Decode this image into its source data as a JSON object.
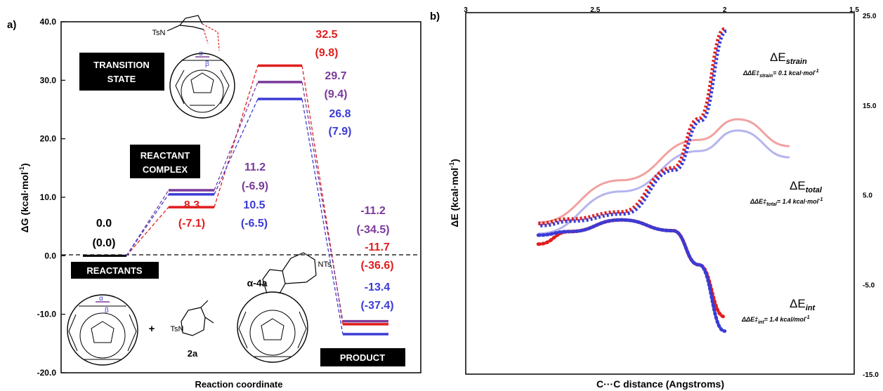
{
  "colors": {
    "red": "#e01e1e",
    "purple": "#7a3a9a",
    "blue": "#3b3bd6",
    "black": "#000000",
    "red_light": "#f2a0a0",
    "blue_light": "#b4b4ee"
  },
  "panel_a": {
    "label": "a)",
    "ylabel": "ΔG (kcal·mol",
    "ylabel_sup": "-1",
    "ylabel_tail": ")",
    "xlabel": "Reaction coordinate",
    "yticks": [
      "40.0",
      "30.0",
      "20.0",
      "10.0",
      "0.0",
      "-10.0",
      "-20.0"
    ],
    "boxes": {
      "transition_line1": "TRANSITION",
      "transition_line2": "STATE",
      "complex_line1": "REACTANT",
      "complex_line2": "COMPLEX",
      "reactants": "REACTANTS",
      "product": "PRODUCT"
    },
    "molecules": {
      "ts_label": "TsN",
      "alpha": "α",
      "beta": "β",
      "plus": "+",
      "reagent_label": "TsN",
      "reagent_name": "2a",
      "product_name": "α-4a",
      "product_nts": "NTs"
    }
  },
  "chart_data": [
    {
      "type": "line",
      "title": "",
      "xlabel": "Reaction coordinate",
      "ylabel": "ΔG (kcal·mol-1)",
      "ylim": [
        -20,
        40
      ],
      "categories": [
        "Reactants",
        "Reactant complex",
        "Transition state",
        "Product"
      ],
      "series": [
        {
          "color": "red",
          "values": [
            0.0,
            8.3,
            32.5,
            -11.7
          ],
          "labels": [
            "0.0",
            "8.3",
            "32.5",
            "-11.7"
          ],
          "sublabels": [
            "(0.0)",
            "(-7.1)",
            "(9.8)",
            "(-36.6)"
          ]
        },
        {
          "color": "purple",
          "values": [
            0.0,
            11.2,
            29.7,
            -11.2
          ],
          "labels": [
            "0.0",
            "11.2",
            "29.7",
            "-11.2"
          ],
          "sublabels": [
            "(0.0)",
            "(-6.9)",
            "(9.4)",
            "(-34.5)"
          ]
        },
        {
          "color": "blue",
          "values": [
            0.0,
            10.5,
            26.8,
            -13.4
          ],
          "labels": [
            "0.0",
            "10.5",
            "26.8",
            "-13.4"
          ],
          "sublabels": [
            "(0.0)",
            "(-6.5)",
            "(7.9)",
            "(-37.4)"
          ]
        }
      ],
      "reference_line": 0.0
    },
    {
      "type": "line",
      "title": "",
      "xlabel": "C···C distance (Angstroms)",
      "ylabel": "ΔE (kcal·mol-1)",
      "xlim": [
        3,
        1.5
      ],
      "ylim": [
        -15,
        25
      ],
      "x_reversed": true,
      "series": [
        {
          "name": "ΔE_strain",
          "style": "dotted",
          "colors": [
            "red",
            "blue"
          ],
          "x": [
            2.72,
            2.6,
            2.4,
            2.2,
            2.1,
            2.0
          ],
          "values": [
            1.8,
            2.3,
            3.1,
            8.0,
            13.5,
            23.5
          ]
        },
        {
          "name": "ΔE_total",
          "style": "solid-faint",
          "colors": [
            "red",
            "blue"
          ],
          "x": [
            2.72,
            2.4,
            2.1,
            1.95,
            1.75
          ],
          "values": [
            1.3,
            6.0,
            10.5,
            12.8,
            9.8
          ]
        },
        {
          "name": "ΔE_int",
          "style": "dotted",
          "colors": [
            "red",
            "blue"
          ],
          "x": [
            2.72,
            2.6,
            2.4,
            2.2,
            2.1,
            2.0
          ],
          "values": [
            -0.5,
            0.9,
            2.2,
            1.0,
            -2.8,
            -8.6
          ]
        }
      ]
    }
  ],
  "panel_b": {
    "label": "b)",
    "ylabel": "ΔE (kcal·mol",
    "ylabel_sup": "-1",
    "ylabel_tail": ")",
    "xlabel": "C···C distance (Angstroms)",
    "xticks": [
      "3",
      "2.5",
      "2",
      "1.5"
    ],
    "yticks": [
      "25.0",
      "15.0",
      "5.0",
      "-5.0",
      "-15.0"
    ],
    "annotations": {
      "strain_title": "ΔE",
      "strain_sub": "strain",
      "strain_note_pre": "ΔΔE‡",
      "strain_note_sub": "strain",
      "strain_note_post": "= 0.1 kcal·mol",
      "total_title": "ΔE",
      "total_sub": "total",
      "total_note_pre": "ΔΔE‡",
      "total_note_sub": "total",
      "total_note_post": "= 1.4 kcal·mol",
      "int_title": "ΔE",
      "int_sub": "int",
      "int_note_pre": "ΔΔE‡",
      "int_note_sub": "int",
      "int_note_post": "= 1.4 kcal/mol",
      "note_sup": "-1"
    }
  }
}
